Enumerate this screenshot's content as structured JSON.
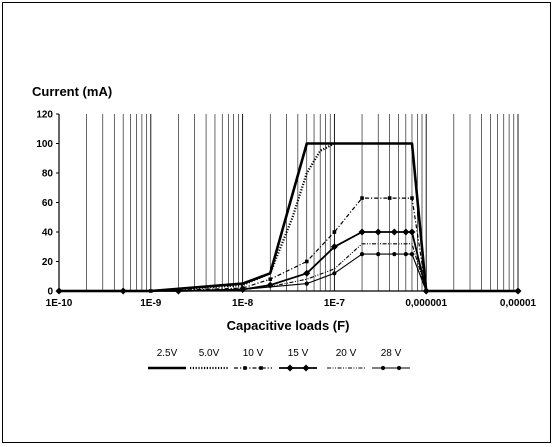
{
  "chart_data": {
    "type": "line",
    "title": "",
    "ylabel": "Current (mA)",
    "xlabel": "Capacitive loads (F)",
    "x_scale": "log",
    "xlim": [
      1e-10,
      1e-05
    ],
    "ylim": [
      0,
      120
    ],
    "grid": "vertical",
    "legend_position": "bottom",
    "x_tick_values": [
      1e-10,
      1e-09,
      1e-08,
      1e-07,
      1e-06,
      1e-05
    ],
    "x_tick_labels": [
      "1E-10",
      "1E-9",
      "1E-8",
      "1E-7",
      "0,000001",
      "0,00001"
    ],
    "y_ticks": [
      0,
      20,
      40,
      60,
      80,
      100,
      120
    ],
    "series": [
      {
        "name": "2.5V",
        "style": "thick-solid",
        "marker": "none",
        "x": [
          1e-10,
          1e-09,
          1e-08,
          2e-08,
          5e-08,
          7e-07,
          1e-06,
          1e-05
        ],
        "y": [
          0,
          0,
          5,
          12,
          100,
          100,
          0,
          0
        ]
      },
      {
        "name": "5.0V",
        "style": "dotted",
        "marker": "none",
        "x": [
          1e-10,
          1e-09,
          1e-08,
          2e-08,
          3.5e-08,
          5e-08,
          7e-08,
          1e-07
        ],
        "y": [
          0,
          0,
          4,
          12,
          50,
          80,
          95,
          100
        ]
      },
      {
        "name": "10 V",
        "style": "dash-dot",
        "marker": "square",
        "x": [
          1e-10,
          1e-09,
          1e-08,
          2e-08,
          5e-08,
          1e-07,
          2e-07,
          4e-07,
          7e-07,
          1e-06,
          1e-05
        ],
        "y": [
          0,
          0,
          2,
          8,
          20,
          40,
          63,
          63,
          63,
          0,
          0
        ]
      },
      {
        "name": "15 V",
        "style": "solid",
        "marker": "diamond",
        "x": [
          1e-10,
          5e-10,
          2e-09,
          1e-08,
          2e-08,
          5e-08,
          1e-07,
          2e-07,
          3e-07,
          4.5e-07,
          6e-07,
          7e-07,
          1e-06,
          1e-05
        ],
        "y": [
          0,
          0,
          0,
          1,
          4,
          12,
          30,
          40,
          40,
          40,
          40,
          40,
          0,
          0
        ]
      },
      {
        "name": "20 V",
        "style": "dash-dot-dot",
        "marker": "none",
        "x": [
          1e-10,
          1e-09,
          1e-08,
          2e-08,
          5e-08,
          1e-07,
          2e-07,
          7e-07,
          1e-06,
          1e-05
        ],
        "y": [
          0,
          0,
          1,
          3,
          8,
          15,
          32,
          32,
          0,
          0
        ]
      },
      {
        "name": "28 V",
        "style": "thin-solid",
        "marker": "dot",
        "x": [
          1e-10,
          5e-10,
          2e-09,
          1e-08,
          5e-08,
          1e-07,
          2e-07,
          3e-07,
          4.5e-07,
          6e-07,
          7e-07,
          1e-06,
          1e-05
        ],
        "y": [
          0,
          0,
          0,
          1,
          5,
          12,
          25,
          25,
          25,
          25,
          25,
          0,
          0
        ]
      }
    ]
  }
}
